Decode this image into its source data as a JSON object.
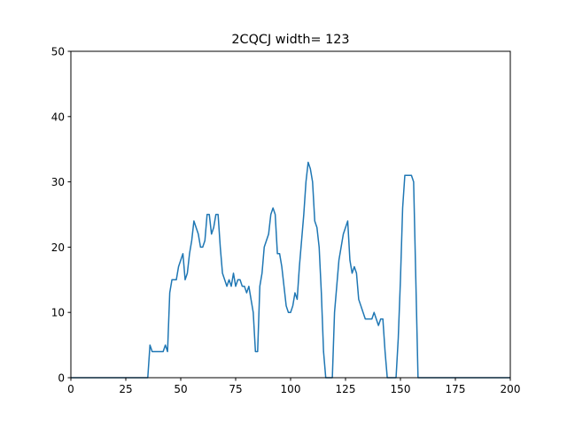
{
  "chart_data": {
    "type": "line",
    "title": "2CQCJ width= 123",
    "xlabel": "",
    "ylabel": "",
    "xlim": [
      0,
      200
    ],
    "ylim": [
      0,
      50
    ],
    "xticks": [
      0,
      25,
      50,
      75,
      100,
      125,
      150,
      175,
      200
    ],
    "yticks": [
      0,
      10,
      20,
      30,
      40,
      50
    ],
    "grid": false,
    "line_color": "#1f77b4",
    "series": [
      {
        "x": [
          0,
          35,
          36,
          37,
          38,
          39,
          40,
          41,
          42,
          43,
          44,
          45,
          46,
          47,
          48,
          49,
          50,
          51,
          52,
          53,
          54,
          55,
          56,
          57,
          58,
          59,
          60,
          61,
          62,
          63,
          64,
          65,
          66,
          67,
          68,
          69,
          70,
          71,
          72,
          73,
          74,
          75,
          76,
          77,
          78,
          79,
          80,
          81,
          82,
          83,
          84,
          85,
          86,
          87,
          88,
          89,
          90,
          91,
          92,
          93,
          94,
          95,
          96,
          97,
          98,
          99,
          100,
          101,
          102,
          103,
          104,
          105,
          106,
          107,
          108,
          109,
          110,
          111,
          112,
          113,
          114,
          115,
          116,
          117,
          118,
          119,
          120,
          121,
          122,
          123,
          124,
          125,
          126,
          127,
          128,
          129,
          130,
          131,
          132,
          133,
          134,
          135,
          136,
          137,
          138,
          139,
          140,
          141,
          142,
          143,
          144,
          145,
          146,
          147,
          148,
          149,
          150,
          151,
          152,
          153,
          154,
          155,
          156,
          157,
          158,
          159,
          200
        ],
        "y": [
          0,
          0,
          5,
          4,
          4,
          4,
          4,
          4,
          4,
          5,
          4,
          13,
          15,
          15,
          15,
          17,
          18,
          19,
          15,
          16,
          19,
          21,
          24,
          23,
          22,
          20,
          20,
          21,
          25,
          25,
          22,
          23,
          25,
          25,
          20,
          16,
          15,
          14,
          15,
          14,
          16,
          14,
          15,
          15,
          14,
          14,
          13,
          14,
          12,
          10,
          4,
          4,
          14,
          16,
          20,
          21,
          22,
          25,
          26,
          25,
          19,
          19,
          17,
          14,
          11,
          10,
          10,
          11,
          13,
          12,
          17,
          21,
          25,
          30,
          33,
          32,
          30,
          24,
          23,
          20,
          13,
          4,
          0,
          0,
          0,
          0,
          10,
          14,
          18,
          20,
          22,
          23,
          24,
          18,
          16,
          17,
          16,
          12,
          11,
          10,
          9,
          9,
          9,
          9,
          10,
          9,
          8,
          9,
          9,
          4,
          0,
          0,
          0,
          0,
          0,
          6,
          15,
          26,
          31,
          31,
          31,
          31,
          30,
          15,
          0,
          0,
          0
        ]
      }
    ]
  }
}
